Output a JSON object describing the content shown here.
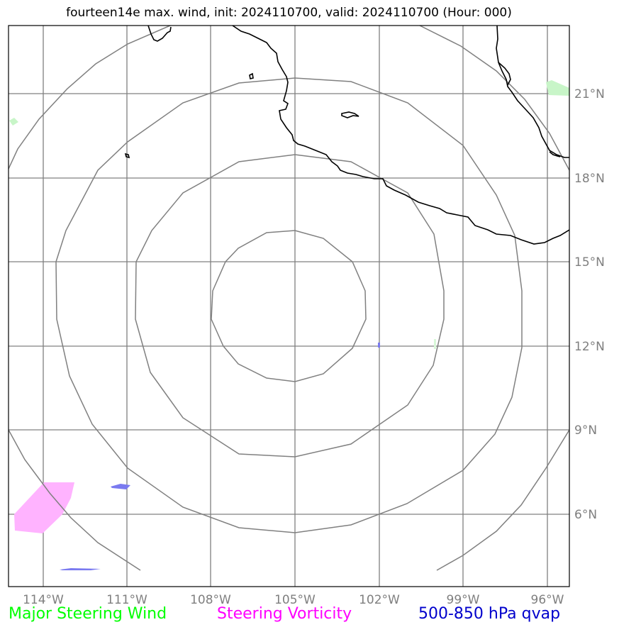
{
  "title": "fourteen14e max. wind, init: 2024110700, valid: 2024110700 (Hour: 000)",
  "longitude_ticks": [
    "114°W",
    "111°W",
    "108°W",
    "105°W",
    "102°W",
    "99°W",
    "96°W"
  ],
  "latitude_ticks": [
    "21°N",
    "18°N",
    "15°N",
    "12°N",
    "9°N",
    "6°N"
  ],
  "legend": [
    {
      "label": "Major Steering Wind",
      "color": "#00ff00"
    },
    {
      "label": "Steering Vorticity",
      "color": "#ff00ff"
    },
    {
      "label": "500-850 hPa qvap",
      "color": "#0000cc"
    }
  ],
  "colors": {
    "grid": "#808080",
    "range_rings": "#808080",
    "coastline": "#000000",
    "vorticity_fill": "#ffb3ff",
    "qvap_fill": "#7a7af0",
    "wind_fill": "#c8f5c8"
  }
}
